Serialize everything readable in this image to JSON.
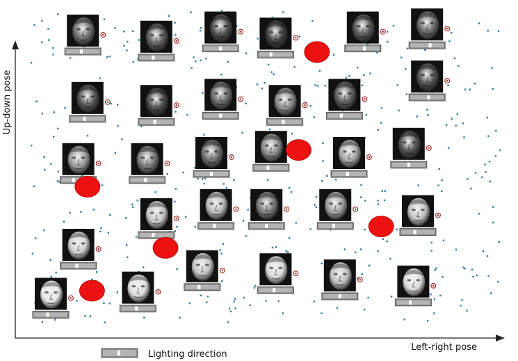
{
  "chart_data": {
    "type": "scatter",
    "xlabel": "Left-right pose",
    "ylabel": "Up-down pose",
    "legend": {
      "label": "Lighting direction",
      "placement": "bottom-left"
    },
    "colors": {
      "points": "#2b7a96",
      "markers": "#ee1111",
      "marker_edge": "#b00000",
      "lighting_icon": "#9e1b1b",
      "face_frame": "#111111",
      "bar": "#8c8c8c"
    },
    "faces": [
      {
        "x": 0.12,
        "y": 0.95,
        "tone": "#6e6e6e",
        "light": 0.45
      },
      {
        "x": 0.28,
        "y": 0.93,
        "tone": "#5a5a5a",
        "light": 0.4
      },
      {
        "x": 0.42,
        "y": 0.96,
        "tone": "#4e4e4e",
        "light": 0.5
      },
      {
        "x": 0.54,
        "y": 0.94,
        "tone": "#3e3e3e",
        "light": 0.35
      },
      {
        "x": 0.73,
        "y": 0.96,
        "tone": "#555555",
        "light": 0.55
      },
      {
        "x": 0.87,
        "y": 0.97,
        "tone": "#6a6a6a",
        "light": 0.6
      },
      {
        "x": 0.13,
        "y": 0.73,
        "tone": "#545454",
        "light": 0.4
      },
      {
        "x": 0.28,
        "y": 0.72,
        "tone": "#4a4a4a",
        "light": 0.45
      },
      {
        "x": 0.42,
        "y": 0.74,
        "tone": "#6a6a6a",
        "light": 0.5
      },
      {
        "x": 0.56,
        "y": 0.72,
        "tone": "#8a8a8a",
        "light": 0.45
      },
      {
        "x": 0.69,
        "y": 0.74,
        "tone": "#5e5e5e",
        "light": 0.4
      },
      {
        "x": 0.87,
        "y": 0.8,
        "tone": "#505050",
        "light": 0.55
      },
      {
        "x": 0.11,
        "y": 0.53,
        "tone": "#9a9a9a",
        "light": 0.35
      },
      {
        "x": 0.26,
        "y": 0.53,
        "tone": "#7a7a7a",
        "light": 0.45
      },
      {
        "x": 0.4,
        "y": 0.55,
        "tone": "#6e6e6e",
        "light": 0.5
      },
      {
        "x": 0.53,
        "y": 0.57,
        "tone": "#8a8a8a",
        "light": 0.4
      },
      {
        "x": 0.7,
        "y": 0.55,
        "tone": "#a8a8a8",
        "light": 0.45
      },
      {
        "x": 0.83,
        "y": 0.58,
        "tone": "#525252",
        "light": 0.5
      },
      {
        "x": 0.28,
        "y": 0.35,
        "tone": "#c8c8c8",
        "light": 0.4
      },
      {
        "x": 0.41,
        "y": 0.38,
        "tone": "#bcbcbc",
        "light": 0.45
      },
      {
        "x": 0.52,
        "y": 0.38,
        "tone": "#7a7a7a",
        "light": 0.5
      },
      {
        "x": 0.67,
        "y": 0.38,
        "tone": "#a0a0a0",
        "light": 0.45
      },
      {
        "x": 0.85,
        "y": 0.36,
        "tone": "#c4c4c4",
        "light": 0.4
      },
      {
        "x": 0.11,
        "y": 0.25,
        "tone": "#d0d0d0",
        "light": 0.45
      },
      {
        "x": 0.38,
        "y": 0.18,
        "tone": "#c6c6c6",
        "light": 0.4
      },
      {
        "x": 0.54,
        "y": 0.17,
        "tone": "#dadada",
        "light": 0.45
      },
      {
        "x": 0.68,
        "y": 0.15,
        "tone": "#c0c0c0",
        "light": 0.5
      },
      {
        "x": 0.84,
        "y": 0.13,
        "tone": "#dedede",
        "light": 0.4
      },
      {
        "x": 0.24,
        "y": 0.11,
        "tone": "#e0e0e0",
        "light": 0.45
      },
      {
        "x": 0.05,
        "y": 0.09,
        "tone": "#e8e8e8",
        "light": 0.4
      }
    ],
    "markers": [
      {
        "x": 0.63,
        "y": 0.88
      },
      {
        "x": 0.13,
        "y": 0.44
      },
      {
        "x": 0.59,
        "y": 0.56
      },
      {
        "x": 0.3,
        "y": 0.24
      },
      {
        "x": 0.77,
        "y": 0.31
      },
      {
        "x": 0.14,
        "y": 0.1
      }
    ],
    "scatter_seed": 17,
    "scatter_count": 420
  }
}
